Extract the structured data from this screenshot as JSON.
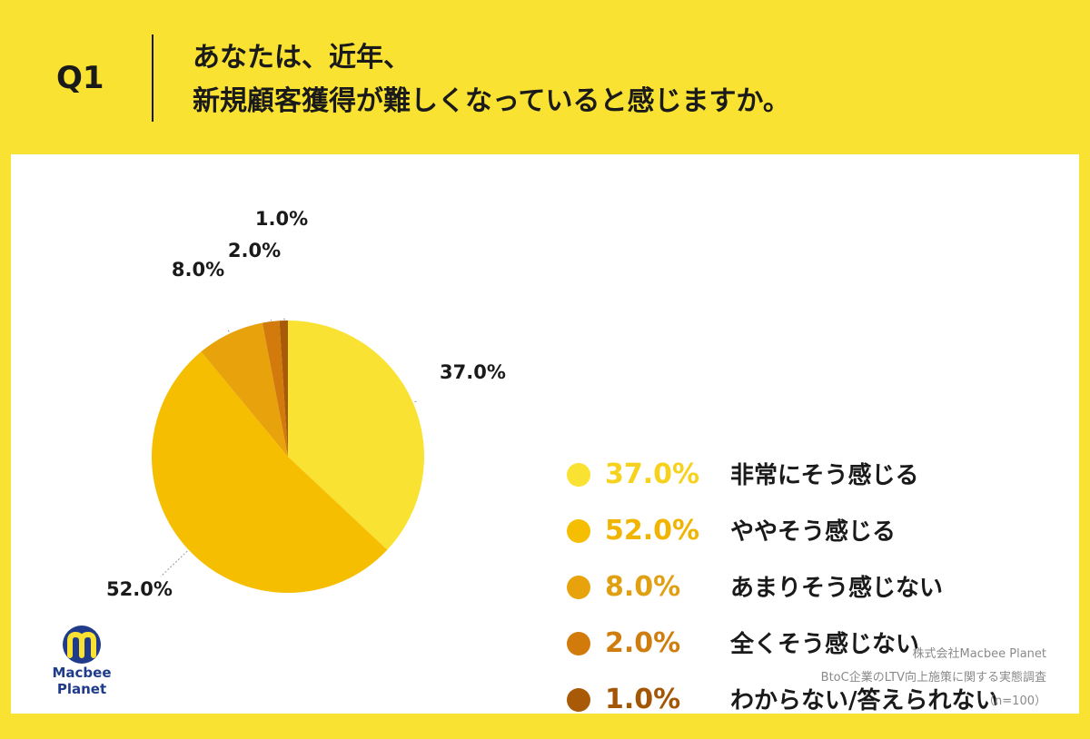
{
  "header": {
    "question_number": "Q1",
    "title_line1": "あなたは、近年、",
    "title_line2": "新規顧客獲得が難しくなっていると感じますか。"
  },
  "chart_data": {
    "type": "pie",
    "categories": [
      "非常にそう感じる",
      "ややそう感じる",
      "あまりそう感じない",
      "全くそう感じない",
      "わからない/答えられない"
    ],
    "values": [
      37.0,
      52.0,
      8.0,
      2.0,
      1.0
    ],
    "value_labels": [
      "37.0%",
      "52.0%",
      "8.0%",
      "2.0%",
      "1.0%"
    ],
    "colors": [
      "#F9E231",
      "#F6BE00",
      "#E8A20C",
      "#D27A0C",
      "#A85A06"
    ],
    "legend_value_colors": [
      "#F6D21E",
      "#F1B400",
      "#E0A014",
      "#CF7D0E",
      "#A35606"
    ],
    "start_angle_deg": 0,
    "direction": "clockwise",
    "legend_placement": "right"
  },
  "legend": {
    "items": [
      {
        "value": "37.0%",
        "label": "非常にそう感じる"
      },
      {
        "value": "52.0%",
        "label": "ややそう感じる"
      },
      {
        "value": "8.0%",
        "label": "あまりそう感じない"
      },
      {
        "value": "2.0%",
        "label": "全くそう感じない"
      },
      {
        "value": "1.0%",
        "label": "わからない/答えられない"
      }
    ]
  },
  "logo": {
    "line1": "Macbee",
    "line2": "Planet"
  },
  "footer": {
    "company": "株式会社Macbee Planet",
    "survey": "BtoC企業のLTV向上施策に関する実態調査",
    "sample": "（n=100）"
  }
}
